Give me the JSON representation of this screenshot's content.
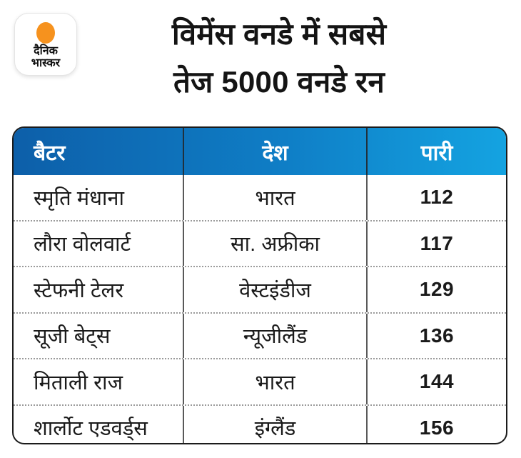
{
  "brand": {
    "logo_line1": "दैनिक",
    "logo_line2": "भास्कर",
    "logo_dot_color": "#f6921e"
  },
  "header": {
    "title_line1": "विमेंस वनडे में सबसे",
    "title_line2": "तेज 5000 वनडे रन"
  },
  "colors": {
    "header_gradient_left": "#0d5fa9",
    "header_gradient_right": "#14a3e1",
    "header_text": "#ffffff",
    "body_text": "#1a1a1a",
    "table_border": "#1b1b1b",
    "column_divider": "#595959",
    "row_divider_dotted": "#9a9a9a",
    "background": "#ffffff"
  },
  "chart_data": {
    "type": "table",
    "title": "विमेंस वनडे में सबसे तेज 5000 वनडे रन",
    "columns": [
      "बैटर",
      "देश",
      "पारी"
    ],
    "rows": [
      [
        "स्मृति मंधाना",
        "भारत",
        "112"
      ],
      [
        "लौरा वोलवार्ट",
        "सा. अफ्रीका",
        "117"
      ],
      [
        "स्टेफनी टेलर",
        "वेस्टइंडीज",
        "129"
      ],
      [
        "सूजी बेट्स",
        "न्यूजीलैंड",
        "136"
      ],
      [
        "मिताली राज",
        "भारत",
        "144"
      ],
      [
        "शार्लोट एडवर्ड्स",
        "इंग्लैंड",
        "156"
      ]
    ]
  }
}
